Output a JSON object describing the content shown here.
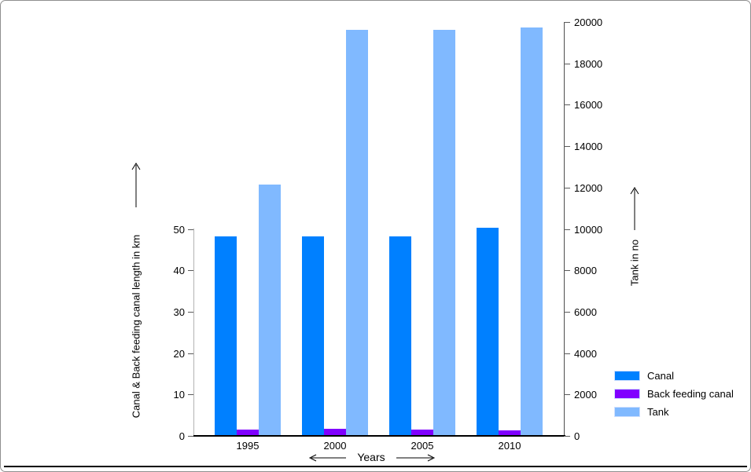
{
  "chart_data": {
    "type": "bar",
    "title": "",
    "categories": [
      "1995",
      "2000",
      "2005",
      "2010"
    ],
    "series": [
      {
        "name": "Canal",
        "axis": "left",
        "color": "#0080ff",
        "values": [
          48,
          48,
          48,
          50
        ]
      },
      {
        "name": "Back feeding canal",
        "axis": "left",
        "color": "#8000ff",
        "values": [
          1.3,
          1.5,
          1.4,
          1.2
        ]
      },
      {
        "name": "Tank",
        "axis": "right",
        "color": "#80b9ff",
        "values": [
          12100,
          19600,
          19600,
          19700
        ]
      }
    ],
    "left_axis": {
      "label": "Canal & Back feeding canal length in km",
      "min": 0,
      "max": 50,
      "tick_step": 10,
      "ticks": [
        0,
        10,
        20,
        30,
        40,
        50
      ]
    },
    "right_axis": {
      "label": "Tank in no",
      "min": 0,
      "max": 20000,
      "tick_step": 2000,
      "ticks": [
        0,
        2000,
        4000,
        6000,
        8000,
        10000,
        12000,
        14000,
        16000,
        18000,
        20000
      ]
    },
    "x_axis": {
      "label": "Years"
    },
    "legend": {
      "position": "bottom-right",
      "items": [
        "Canal",
        "Back feeding canal",
        "Tank"
      ]
    },
    "grid": "off"
  },
  "colors": {
    "canal": "#0080ff",
    "back_feeding_canal": "#8000ff",
    "tank": "#80b9ff",
    "left_axis_line": "#b3b3b3",
    "right_axis_line": "#4d4d4d",
    "x_axis_line": "#000000",
    "frame_border": "#8f8f8f"
  }
}
